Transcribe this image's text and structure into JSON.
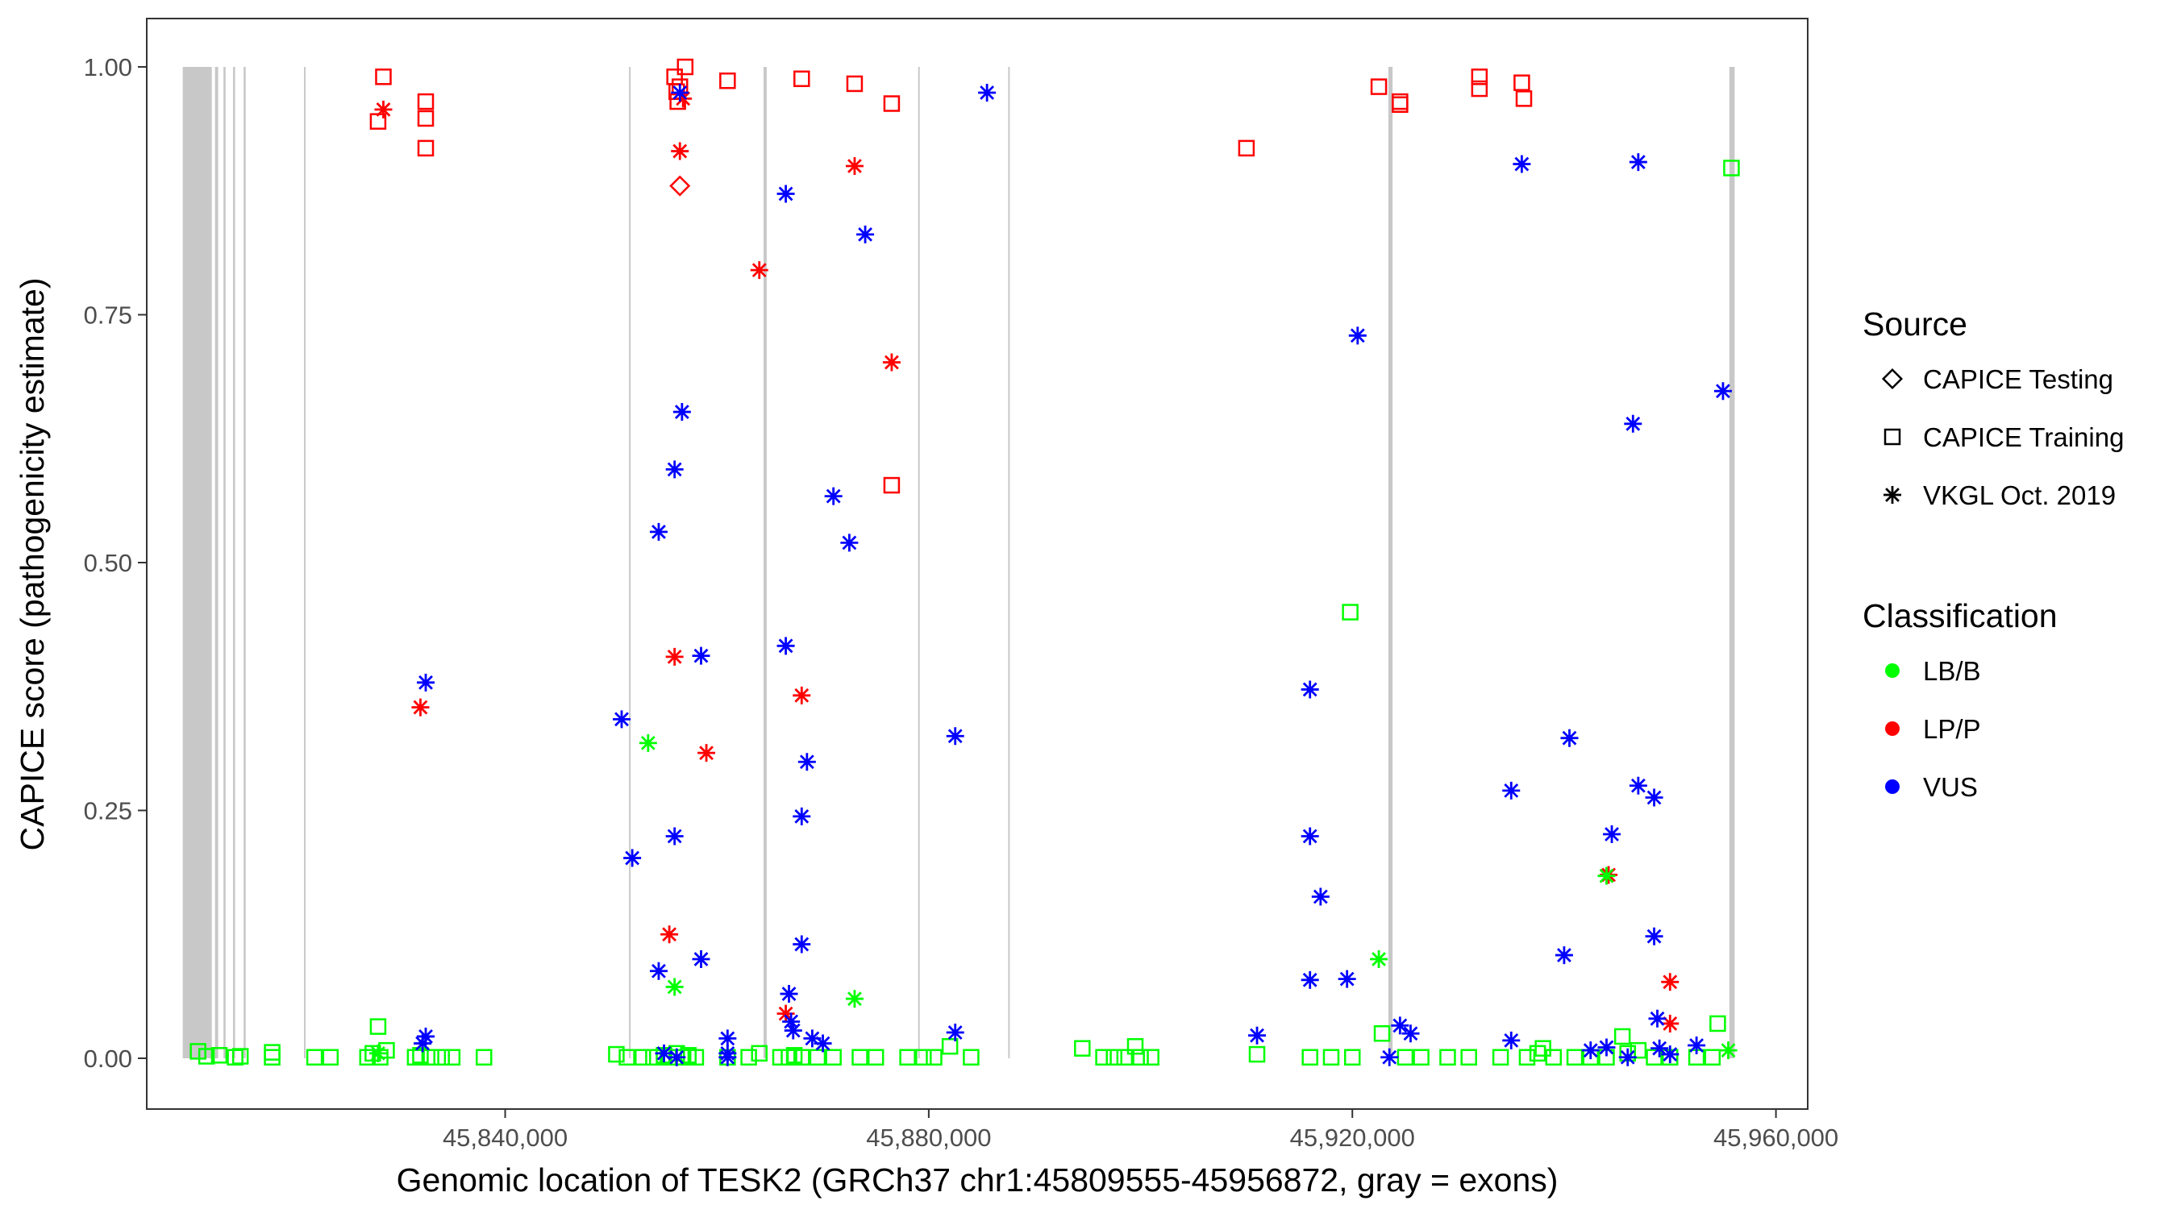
{
  "chart_data": {
    "type": "scatter",
    "xlabel": "Genomic location of TESK2 (GRCh37 chr1:45809555-45956872, gray = exons)",
    "ylabel": "CAPICE score (pathogenicity estimate)",
    "xlim": [
      45809555,
      45956872
    ],
    "ylim": [
      0,
      1
    ],
    "x_ticks": [
      45840000,
      45880000,
      45920000,
      45960000
    ],
    "x_tick_labels": [
      "45,840,000",
      "45,880,000",
      "45,920,000",
      "45,960,000"
    ],
    "y_ticks": [
      0,
      0.25,
      0.5,
      0.75,
      1
    ],
    "y_tick_labels": [
      "0.00",
      "0.25",
      "0.50",
      "0.75",
      "1.00"
    ],
    "grid": false,
    "exon_color": "#c8c8c8",
    "exons": [
      [
        45809555,
        45812300
      ],
      [
        45812600,
        45812900
      ],
      [
        45813400,
        45813600
      ],
      [
        45814300,
        45814500
      ],
      [
        45815300,
        45815500
      ],
      [
        45821000,
        45821150
      ],
      [
        45851700,
        45851850
      ],
      [
        45864400,
        45864700
      ],
      [
        45879000,
        45879150
      ],
      [
        45887500,
        45887650
      ],
      [
        45923400,
        45923800
      ],
      [
        45955600,
        45956100
      ]
    ],
    "legend": {
      "placement": "right",
      "shape_title": "Source",
      "shape_entries": [
        {
          "label": "CAPICE Testing",
          "shape": "diamond"
        },
        {
          "label": "CAPICE Training",
          "shape": "square"
        },
        {
          "label": "VKGL Oct. 2019",
          "shape": "asterisk"
        }
      ],
      "color_title": "Classification",
      "color_entries": [
        {
          "label": "LB/B",
          "color": "#00ff00"
        },
        {
          "label": "LP/P",
          "color": "#ff0000"
        },
        {
          "label": "VUS",
          "color": "#0000ff"
        }
      ]
    },
    "series": [
      {
        "source": "CAPICE Testing",
        "shape": "diamond",
        "class": "LP/P",
        "color": "#ff0000",
        "points": [
          [
            45856500,
            0.88
          ]
        ]
      },
      {
        "source": "CAPICE Training",
        "shape": "square",
        "class": "LP/P",
        "color": "#ff0000",
        "points": [
          [
            45828500,
            0.99
          ],
          [
            45828000,
            0.945
          ],
          [
            45832500,
            0.965
          ],
          [
            45832500,
            0.948
          ],
          [
            45832500,
            0.918
          ],
          [
            45856000,
            0.99
          ],
          [
            45856300,
            0.965
          ],
          [
            45856200,
            0.975
          ],
          [
            45856500,
            0.98
          ],
          [
            45857000,
            1.0
          ],
          [
            45861000,
            0.986
          ],
          [
            45868000,
            0.988
          ],
          [
            45873000,
            0.983
          ],
          [
            45876500,
            0.963
          ],
          [
            45876500,
            0.578
          ],
          [
            45910000,
            0.918
          ],
          [
            45922500,
            0.98
          ],
          [
            45924500,
            0.965
          ],
          [
            45924500,
            0.962
          ],
          [
            45932000,
            0.99
          ],
          [
            45932000,
            0.978
          ],
          [
            45936000,
            0.984
          ],
          [
            45936200,
            0.968
          ]
        ]
      },
      {
        "source": "CAPICE Training",
        "shape": "square",
        "class": "LB/B",
        "color": "#00ff00",
        "points": [
          [
            45811000,
            0.007
          ],
          [
            45811800,
            0.002
          ],
          [
            45813000,
            0.003
          ],
          [
            45814500,
            0.001
          ],
          [
            45815000,
            0.002
          ],
          [
            45818000,
            0.006
          ],
          [
            45818000,
            0.001
          ],
          [
            45822000,
            0.001
          ],
          [
            45823500,
            0.001
          ],
          [
            45827000,
            0.001
          ],
          [
            45827500,
            0.005
          ],
          [
            45828000,
            0.032
          ],
          [
            45828200,
            0.001
          ],
          [
            45828800,
            0.008
          ],
          [
            45831500,
            0.001
          ],
          [
            45832000,
            0.003
          ],
          [
            45833000,
            0.001
          ],
          [
            45834000,
            0.001
          ],
          [
            45835000,
            0.001
          ],
          [
            45838000,
            0.001
          ],
          [
            45850500,
            0.004
          ],
          [
            45851500,
            0.001
          ],
          [
            45853000,
            0.001
          ],
          [
            45854000,
            0.001
          ],
          [
            45855000,
            0.003
          ],
          [
            45855500,
            0.001
          ],
          [
            45856200,
            0.005
          ],
          [
            45856800,
            0.001
          ],
          [
            45857300,
            0.003
          ],
          [
            45858000,
            0.001
          ],
          [
            45861000,
            0.001
          ],
          [
            45863000,
            0.001
          ],
          [
            45864000,
            0.005
          ],
          [
            45866000,
            0.001
          ],
          [
            45866800,
            0.001
          ],
          [
            45867300,
            0.003
          ],
          [
            45868000,
            0.001
          ],
          [
            45869500,
            0.001
          ],
          [
            45871000,
            0.001
          ],
          [
            45873500,
            0.001
          ],
          [
            45875000,
            0.001
          ],
          [
            45878000,
            0.001
          ],
          [
            45879500,
            0.001
          ],
          [
            45880500,
            0.001
          ],
          [
            45882000,
            0.012
          ],
          [
            45884000,
            0.001
          ],
          [
            45894500,
            0.01
          ],
          [
            45896500,
            0.001
          ],
          [
            45897500,
            0.001
          ],
          [
            45898500,
            0.001
          ],
          [
            45899500,
            0.012
          ],
          [
            45900000,
            0.001
          ],
          [
            45901000,
            0.001
          ],
          [
            45911000,
            0.004
          ],
          [
            45916000,
            0.001
          ],
          [
            45918000,
            0.001
          ],
          [
            45920000,
            0.001
          ],
          [
            45922800,
            0.025
          ],
          [
            45925000,
            0.001
          ],
          [
            45926500,
            0.001
          ],
          [
            45929000,
            0.001
          ],
          [
            45931000,
            0.001
          ],
          [
            45934000,
            0.001
          ],
          [
            45936500,
            0.001
          ],
          [
            45937500,
            0.005
          ],
          [
            45938000,
            0.01
          ],
          [
            45939000,
            0.001
          ],
          [
            45941000,
            0.001
          ],
          [
            45942500,
            0.001
          ],
          [
            45944000,
            0.001
          ],
          [
            45945500,
            0.022
          ],
          [
            45946000,
            0.005
          ],
          [
            45947000,
            0.008
          ],
          [
            45948500,
            0.001
          ],
          [
            45950000,
            0.001
          ],
          [
            45952500,
            0.001
          ],
          [
            45954000,
            0.001
          ],
          [
            45954500,
            0.035
          ],
          [
            45919800,
            0.45
          ],
          [
            45955800,
            0.898
          ]
        ]
      },
      {
        "source": "VKGL Oct. 2019",
        "shape": "asterisk",
        "class": "LP/P",
        "color": "#ff0000",
        "points": [
          [
            45828500,
            0.957
          ],
          [
            45832000,
            0.354
          ],
          [
            45856000,
            0.405
          ],
          [
            45856500,
            0.915
          ],
          [
            45856800,
            0.968
          ],
          [
            45855500,
            0.125
          ],
          [
            45859000,
            0.308
          ],
          [
            45864000,
            0.795
          ],
          [
            45868000,
            0.366
          ],
          [
            45866500,
            0.045
          ],
          [
            45873000,
            0.9
          ],
          [
            45876500,
            0.702
          ],
          [
            45944200,
            0.185
          ],
          [
            45950000,
            0.077
          ],
          [
            45950000,
            0.035
          ]
        ]
      },
      {
        "source": "VKGL Oct. 2019",
        "shape": "asterisk",
        "class": "LB/B",
        "color": "#00ff00",
        "points": [
          [
            45853500,
            0.318
          ],
          [
            45856000,
            0.072
          ],
          [
            45873000,
            0.06
          ],
          [
            45922500,
            0.1
          ],
          [
            45944000,
            0.184
          ],
          [
            45955500,
            0.008
          ],
          [
            45828000,
            0.005
          ]
        ]
      },
      {
        "source": "VKGL Oct. 2019",
        "shape": "asterisk",
        "class": "VUS",
        "color": "#0000ff",
        "points": [
          [
            45832500,
            0.379
          ],
          [
            45832500,
            0.022
          ],
          [
            45832200,
            0.015
          ],
          [
            45851000,
            0.342
          ],
          [
            45852000,
            0.202
          ],
          [
            45854500,
            0.531
          ],
          [
            45854500,
            0.088
          ],
          [
            45856000,
            0.594
          ],
          [
            45856000,
            0.224
          ],
          [
            45856500,
            0.974
          ],
          [
            45856700,
            0.652
          ],
          [
            45855000,
            0.005
          ],
          [
            45856200,
            0.001
          ],
          [
            45858500,
            0.406
          ],
          [
            45858500,
            0.1
          ],
          [
            45861000,
            0.02
          ],
          [
            45861000,
            0.005
          ],
          [
            45861000,
            0.001
          ],
          [
            45866500,
            0.872
          ],
          [
            45866500,
            0.416
          ],
          [
            45866800,
            0.065
          ],
          [
            45867000,
            0.037
          ],
          [
            45867200,
            0.028
          ],
          [
            45868000,
            0.244
          ],
          [
            45868000,
            0.115
          ],
          [
            45868500,
            0.299
          ],
          [
            45869000,
            0.02
          ],
          [
            45870000,
            0.015
          ],
          [
            45871000,
            0.567
          ],
          [
            45872500,
            0.52
          ],
          [
            45874000,
            0.831
          ],
          [
            45882500,
            0.325
          ],
          [
            45882500,
            0.026
          ],
          [
            45885500,
            0.974
          ],
          [
            45911000,
            0.023
          ],
          [
            45916000,
            0.372
          ],
          [
            45916000,
            0.224
          ],
          [
            45916000,
            0.079
          ],
          [
            45917000,
            0.163
          ],
          [
            45919500,
            0.08
          ],
          [
            45920500,
            0.729
          ],
          [
            45923500,
            0.001
          ],
          [
            45924500,
            0.033
          ],
          [
            45925500,
            0.025
          ],
          [
            45935000,
            0.018
          ],
          [
            45935000,
            0.27
          ],
          [
            45936000,
            0.902
          ],
          [
            45940000,
            0.104
          ],
          [
            45940500,
            0.323
          ],
          [
            45942500,
            0.008
          ],
          [
            45944000,
            0.011
          ],
          [
            45944500,
            0.226
          ],
          [
            45946000,
            0.001
          ],
          [
            45946500,
            0.64
          ],
          [
            45947000,
            0.904
          ],
          [
            45947000,
            0.275
          ],
          [
            45948500,
            0.263
          ],
          [
            45948500,
            0.123
          ],
          [
            45948800,
            0.04
          ],
          [
            45949000,
            0.01
          ],
          [
            45950000,
            0.004
          ],
          [
            45952500,
            0.013
          ],
          [
            45955000,
            0.673
          ]
        ]
      }
    ]
  }
}
